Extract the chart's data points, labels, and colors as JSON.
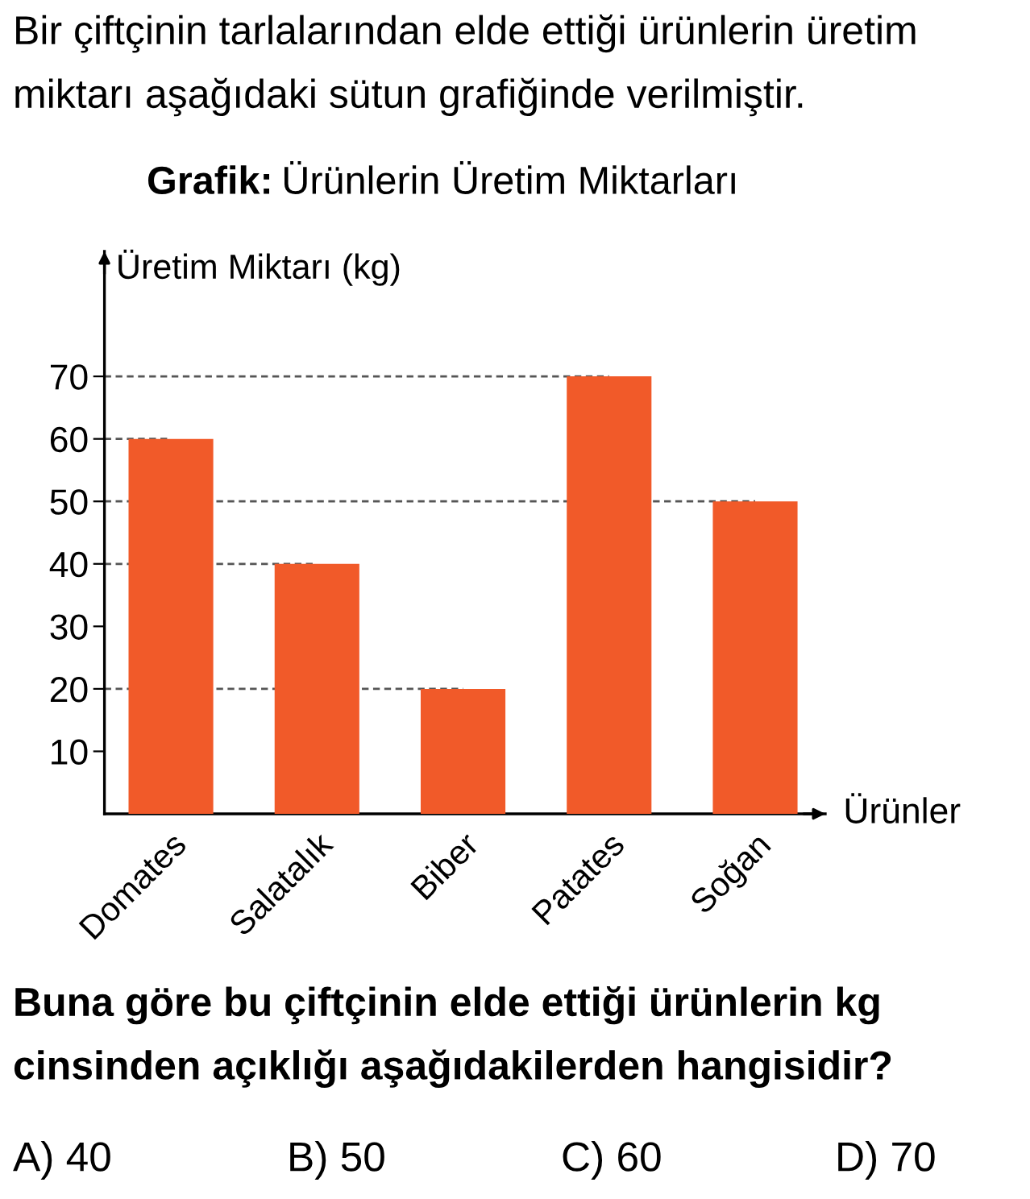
{
  "chart_data": {
    "type": "bar",
    "title": "Grafik: Ürünlerin Üretim Miktarları",
    "xlabel": "Ürünler",
    "ylabel": "Üretim Miktarı (kg)",
    "categories": [
      "Domates",
      "Salatalık",
      "Biber",
      "Patates",
      "Soğan"
    ],
    "values": [
      60,
      40,
      20,
      70,
      50
    ],
    "color": "#f15a29",
    "ylim": [
      0,
      90
    ],
    "yticks": [
      10,
      20,
      30,
      40,
      50,
      60,
      70
    ],
    "ref_lines": [
      {
        "axis": "y",
        "value": 70,
        "line_style": "dashed",
        "color": "#555555"
      },
      {
        "axis": "y",
        "value": 60,
        "line_style": "dashed",
        "color": "#555555"
      },
      {
        "axis": "y",
        "value": 50,
        "line_style": "dashed",
        "color": "#555555"
      },
      {
        "axis": "y",
        "value": 40,
        "line_style": "dashed",
        "color": "#555555"
      },
      {
        "axis": "y",
        "value": 20,
        "line_style": "dashed",
        "color": "#555555"
      }
    ],
    "annotations": [
      "Bir çiftçinin tarlalarından elde ettiği ürünlerin üretim miktarı aşağıdaki sütun grafiğinde verilmiştir.",
      "Buna göre bu çiftçinin elde ettiği ürünlerin kg cinsinden açıklığı aşağıdakilerden hangisidir?",
      "A) 40",
      "B) 50",
      "C) 60",
      "D) 70"
    ]
  }
}
